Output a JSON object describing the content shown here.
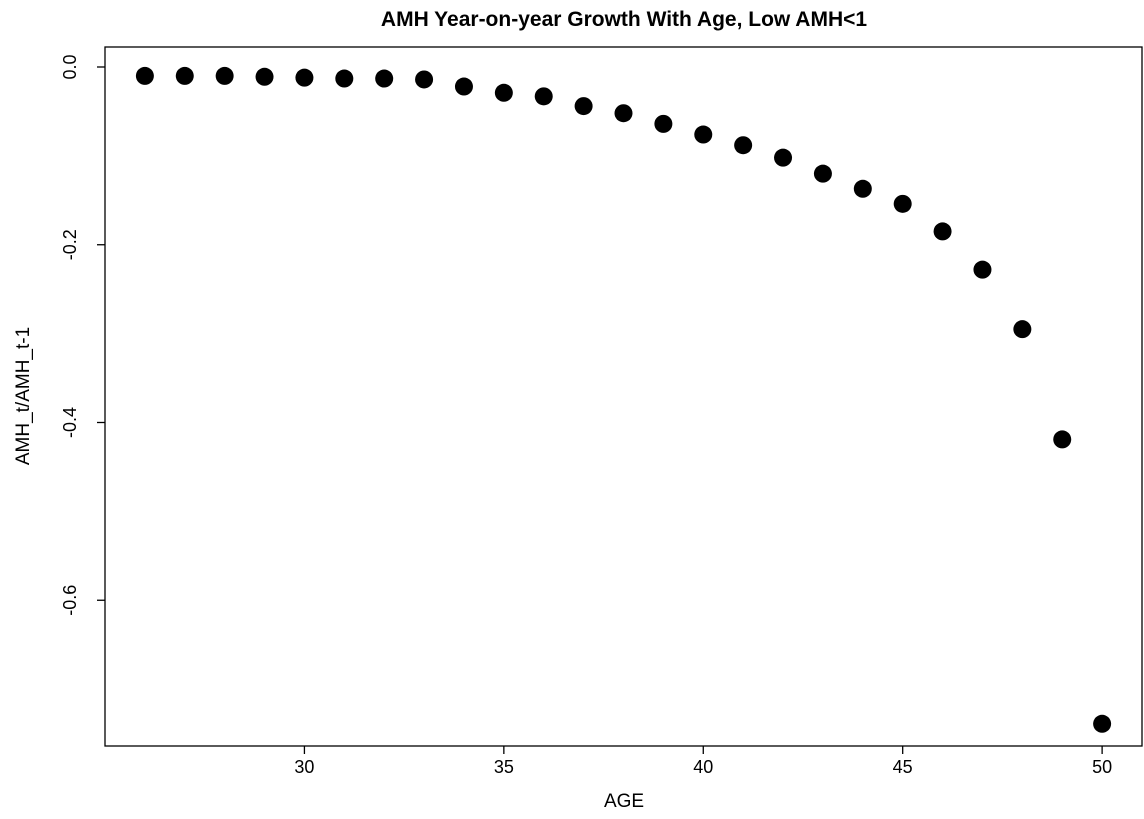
{
  "chart_data": {
    "type": "scatter",
    "title": "AMH  Year-on-year Growth With Age, Low AMH<1",
    "xlabel": "AGE",
    "ylabel": "AMH_t/AMH_t-1",
    "xlim": [
      25,
      51
    ],
    "ylim": [
      -0.764,
      0.0225
    ],
    "x_ticks": [
      30,
      35,
      40,
      45,
      50
    ],
    "x_tick_labels": [
      "30",
      "35",
      "40",
      "45",
      "50"
    ],
    "y_ticks": [
      0.0,
      -0.2,
      -0.4,
      -0.6
    ],
    "y_tick_labels": [
      "0.0",
      "-0.2",
      "-0.4",
      "-0.6"
    ],
    "grid": false,
    "legend": "none",
    "marker": "filled-circle",
    "marker_color": "#000000",
    "series": [
      {
        "x": [
          26,
          27,
          28,
          29,
          30,
          31,
          32,
          33,
          34,
          35,
          36,
          37,
          38,
          39,
          40,
          41,
          42,
          43,
          44,
          45,
          46,
          47,
          48,
          49,
          50
        ],
        "y": [
          -0.01,
          -0.01,
          -0.01,
          -0.011,
          -0.012,
          -0.013,
          -0.013,
          -0.014,
          -0.022,
          -0.029,
          -0.033,
          -0.044,
          -0.052,
          -0.064,
          -0.076,
          -0.088,
          -0.102,
          -0.12,
          -0.137,
          -0.154,
          -0.185,
          -0.228,
          -0.295,
          -0.419,
          -0.739
        ]
      }
    ]
  }
}
